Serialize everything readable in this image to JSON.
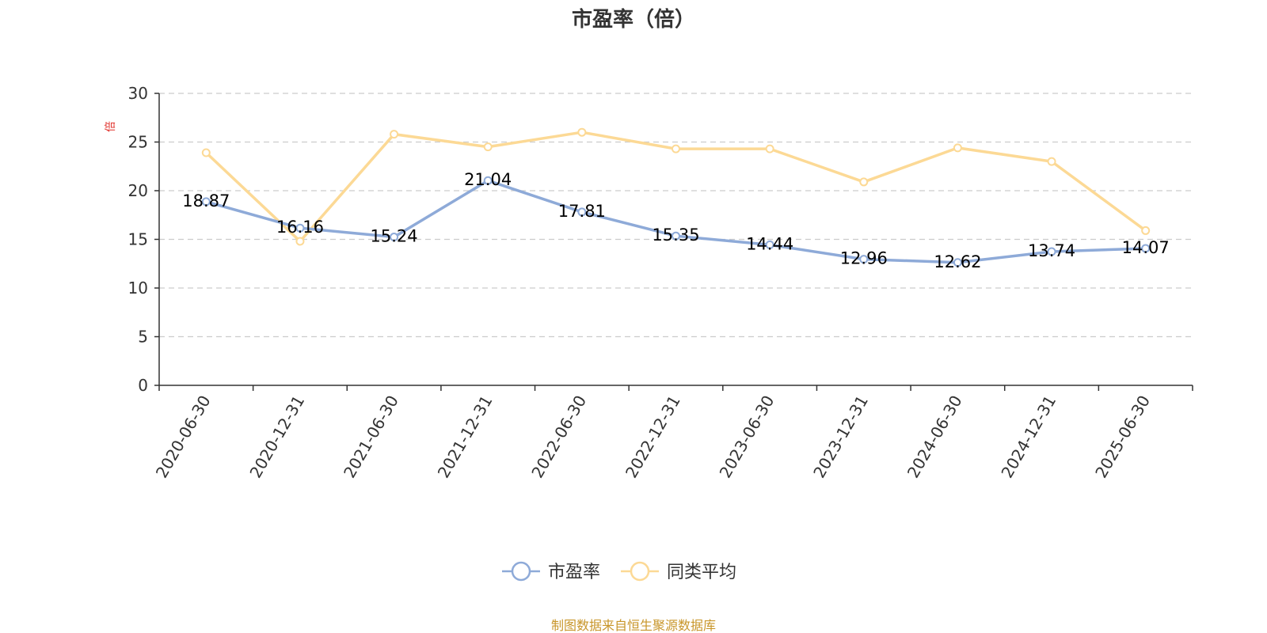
{
  "chart_data": {
    "type": "line",
    "title": "市盈率（倍）",
    "unit_label": "倍",
    "categories": [
      "2020-06-30",
      "2020-12-31",
      "2021-06-30",
      "2021-12-31",
      "2022-06-30",
      "2022-12-31",
      "2023-06-30",
      "2023-12-31",
      "2024-06-30",
      "2024-12-31",
      "2025-06-30"
    ],
    "series": [
      {
        "name": "市盈率",
        "color": "#8eaad8",
        "values": [
          18.87,
          16.16,
          15.24,
          21.04,
          17.81,
          15.35,
          14.44,
          12.96,
          12.62,
          13.74,
          14.07
        ],
        "show_labels": true
      },
      {
        "name": "同类平均",
        "color": "#fcd995",
        "values": [
          23.9,
          14.8,
          25.8,
          24.5,
          26.0,
          24.3,
          24.3,
          20.9,
          24.4,
          23.0,
          15.9
        ],
        "show_labels": false
      }
    ],
    "ylim": [
      0,
      30
    ],
    "yticks": [
      "0",
      "5",
      "10",
      "15",
      "20",
      "25",
      "30"
    ],
    "grid": true,
    "legend_position": "bottom-center",
    "source": "制图数据来自恒生聚源数据库"
  }
}
